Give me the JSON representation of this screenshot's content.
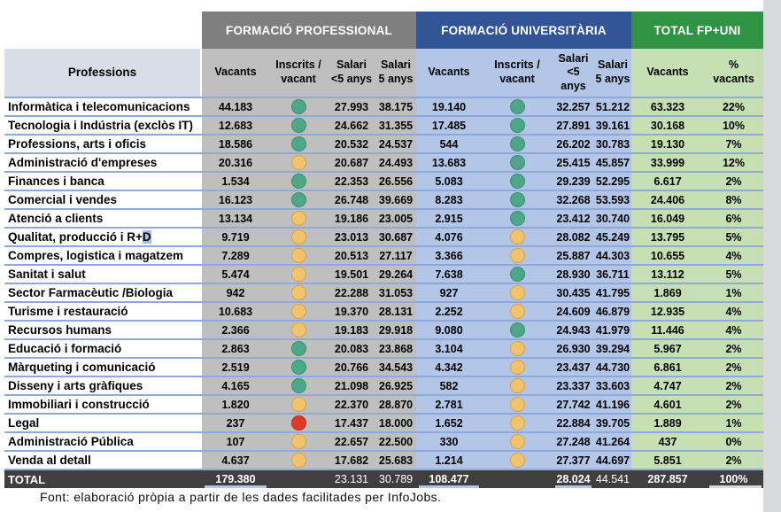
{
  "page": {
    "footer": "Font: elaboració pròpia a partir de les dades facilitades per InfoJobs."
  },
  "colors": {
    "fp_header": "#7F7F7F",
    "uni_header": "#305496",
    "tot_header": "#2E9342",
    "prof_subheader": "#D8DDE7",
    "fp_bg": "#BFBFBF",
    "uni_bg": "#B4C6E7",
    "tot_bg": "#C6E0B4",
    "row_line": "#8EA9DB",
    "total_row_bg": "#3F3F3F",
    "dot_green": "#4DA788",
    "dot_green_border": "#3A8F74",
    "dot_yellow": "#F1C36C",
    "dot_yellow_border": "#D9A348",
    "dot_red": "#DE3A24",
    "dot_red_border": "#B92D18"
  },
  "table": {
    "group_headers": {
      "fp": "FORMACIÓ PROFESSIONAL",
      "uni": "FORMACIÓ UNIVERSITÀRIA",
      "total": "TOTAL FP+UNI"
    },
    "col_headers": {
      "professions": "Professions",
      "fp": [
        "Vacants",
        "Inscrits /\nvacant",
        "Salari\n<5 anys",
        "Salari\n5 anys"
      ],
      "uni": [
        "Vacants",
        "Inscrits /\nvacant",
        "Salari <5\nanys",
        "Salari\n5 anys"
      ],
      "total": [
        "Vacants",
        "%\nvacants"
      ]
    },
    "rows": [
      {
        "name": "Informàtica i telecomunicacions",
        "fp": {
          "vacants": "44.183",
          "dot": "green",
          "salari_lt5": "27.993",
          "salari_5": "38.175"
        },
        "uni": {
          "vacants": "19.140",
          "dot": "green",
          "salari_lt5": "32.257",
          "salari_5": "51.212"
        },
        "total": {
          "vacants": "63.323",
          "pct": "22%"
        }
      },
      {
        "name": "Tecnologia i Indústria (exclòs IT)",
        "fp": {
          "vacants": "12.683",
          "dot": "green",
          "salari_lt5": "24.662",
          "salari_5": "31.355"
        },
        "uni": {
          "vacants": "17.485",
          "dot": "green",
          "salari_lt5": "27.891",
          "salari_5": "39.161"
        },
        "total": {
          "vacants": "30.168",
          "pct": "10%"
        }
      },
      {
        "name": "Professions, arts i oficis",
        "fp": {
          "vacants": "18.586",
          "dot": "green",
          "salari_lt5": "20.532",
          "salari_5": "24.537"
        },
        "uni": {
          "vacants": "544",
          "dot": "green",
          "salari_lt5": "26.202",
          "salari_5": "30.783"
        },
        "total": {
          "vacants": "19.130",
          "pct": "7%"
        }
      },
      {
        "name": "Administració d'empreses",
        "fp": {
          "vacants": "20.316",
          "dot": "yellow",
          "salari_lt5": "20.687",
          "salari_5": "24.493"
        },
        "uni": {
          "vacants": "13.683",
          "dot": "green",
          "salari_lt5": "25.415",
          "salari_5": "45.857"
        },
        "total": {
          "vacants": "33.999",
          "pct": "12%"
        }
      },
      {
        "name": "Finances i banca",
        "fp": {
          "vacants": "1.534",
          "dot": "green",
          "salari_lt5": "22.353",
          "salari_5": "26.556"
        },
        "uni": {
          "vacants": "5.083",
          "dot": "green",
          "salari_lt5": "29.239",
          "salari_5": "52.295"
        },
        "total": {
          "vacants": "6.617",
          "pct": "2%"
        }
      },
      {
        "name": "Comercial i vendes",
        "fp": {
          "vacants": "16.123",
          "dot": "green",
          "salari_lt5": "26.748",
          "salari_5": "39.669"
        },
        "uni": {
          "vacants": "8.283",
          "dot": "green",
          "salari_lt5": "32.268",
          "salari_5": "53.593"
        },
        "total": {
          "vacants": "24.406",
          "pct": "8%"
        }
      },
      {
        "name": "Atenció a clients",
        "fp": {
          "vacants": "13.134",
          "dot": "yellow",
          "salari_lt5": "19.186",
          "salari_5": "23.005"
        },
        "uni": {
          "vacants": "2.915",
          "dot": "green",
          "salari_lt5": "23.412",
          "salari_5": "30.740"
        },
        "total": {
          "vacants": "16.049",
          "pct": "6%"
        }
      },
      {
        "name": "Qualitat, producció i R+D",
        "highlight_last": true,
        "fp": {
          "vacants": "9.719",
          "dot": "yellow",
          "salari_lt5": "23.013",
          "salari_5": "30.687"
        },
        "uni": {
          "vacants": "4.076",
          "dot": "yellow",
          "salari_lt5": "28.082",
          "salari_5": "45.249"
        },
        "total": {
          "vacants": "13.795",
          "pct": "5%"
        }
      },
      {
        "name": "Compres, logistica i magatzem",
        "fp": {
          "vacants": "7.289",
          "dot": "yellow",
          "salari_lt5": "20.513",
          "salari_5": "27.117"
        },
        "uni": {
          "vacants": "3.366",
          "dot": "yellow",
          "salari_lt5": "25.887",
          "salari_5": "44.303"
        },
        "total": {
          "vacants": "10.655",
          "pct": "4%"
        }
      },
      {
        "name": "Sanitat i salut",
        "fp": {
          "vacants": "5.474",
          "dot": "yellow",
          "salari_lt5": "19.501",
          "salari_5": "29.264"
        },
        "uni": {
          "vacants": "7.638",
          "dot": "green",
          "salari_lt5": "28.930",
          "salari_5": "36.711"
        },
        "total": {
          "vacants": "13.112",
          "pct": "5%"
        }
      },
      {
        "name": "Sector Farmacèutic /Biologia",
        "fp": {
          "vacants": "942",
          "dot": "yellow",
          "salari_lt5": "22.288",
          "salari_5": "31.053"
        },
        "uni": {
          "vacants": "927",
          "dot": "yellow",
          "salari_lt5": "30.435",
          "salari_5": "41.795"
        },
        "total": {
          "vacants": "1.869",
          "pct": "1%"
        }
      },
      {
        "name": "Turisme i restauració",
        "fp": {
          "vacants": "10.683",
          "dot": "yellow",
          "salari_lt5": "19.370",
          "salari_5": "28.131"
        },
        "uni": {
          "vacants": "2.252",
          "dot": "yellow",
          "salari_lt5": "24.609",
          "salari_5": "46.879"
        },
        "total": {
          "vacants": "12.935",
          "pct": "4%"
        }
      },
      {
        "name": "Recursos humans",
        "fp": {
          "vacants": "2.366",
          "dot": "yellow",
          "salari_lt5": "19.183",
          "salari_5": "29.918"
        },
        "uni": {
          "vacants": "9.080",
          "dot": "green",
          "salari_lt5": "24.943",
          "salari_5": "41.979"
        },
        "total": {
          "vacants": "11.446",
          "pct": "4%"
        }
      },
      {
        "name": "Educació i formació",
        "fp": {
          "vacants": "2.863",
          "dot": "green",
          "salari_lt5": "20.083",
          "salari_5": "23.868"
        },
        "uni": {
          "vacants": "3.104",
          "dot": "yellow",
          "salari_lt5": "26.930",
          "salari_5": "39.294"
        },
        "total": {
          "vacants": "5.967",
          "pct": "2%"
        }
      },
      {
        "name": "Màrqueting i comunicació",
        "fp": {
          "vacants": "2.519",
          "dot": "green",
          "salari_lt5": "20.766",
          "salari_5": "34.543"
        },
        "uni": {
          "vacants": "4.342",
          "dot": "yellow",
          "salari_lt5": "23.437",
          "salari_5": "44.730"
        },
        "total": {
          "vacants": "6.861",
          "pct": "2%"
        }
      },
      {
        "name": "Disseny i arts gràfiques",
        "fp": {
          "vacants": "4.165",
          "dot": "green",
          "salari_lt5": "21.098",
          "salari_5": "26.925"
        },
        "uni": {
          "vacants": "582",
          "dot": "yellow",
          "salari_lt5": "23.337",
          "salari_5": "33.603"
        },
        "total": {
          "vacants": "4.747",
          "pct": "2%"
        }
      },
      {
        "name": "Immobiliari i construcció",
        "fp": {
          "vacants": "1.820",
          "dot": "yellow",
          "salari_lt5": "22.370",
          "salari_5": "28.870"
        },
        "uni": {
          "vacants": "2.781",
          "dot": "yellow",
          "salari_lt5": "27.742",
          "salari_5": "41.196"
        },
        "total": {
          "vacants": "4.601",
          "pct": "2%"
        }
      },
      {
        "name": "Legal",
        "fp": {
          "vacants": "237",
          "dot": "red",
          "salari_lt5": "17.437",
          "salari_5": "18.000"
        },
        "uni": {
          "vacants": "1.652",
          "dot": "yellow",
          "salari_lt5": "22.884",
          "salari_5": "39.705"
        },
        "total": {
          "vacants": "1.889",
          "pct": "1%"
        }
      },
      {
        "name": "Administració Pública",
        "fp": {
          "vacants": "107",
          "dot": "yellow",
          "salari_lt5": "22.657",
          "salari_5": "22.500"
        },
        "uni": {
          "vacants": "330",
          "dot": "yellow",
          "salari_lt5": "27.248",
          "salari_5": "41.264"
        },
        "total": {
          "vacants": "437",
          "pct": "0%"
        }
      },
      {
        "name": "Venda al detall",
        "fp": {
          "vacants": "4.637",
          "dot": "yellow",
          "salari_lt5": "17.682",
          "salari_5": "25.683"
        },
        "uni": {
          "vacants": "1.214",
          "dot": "yellow",
          "salari_lt5": "27.377",
          "salari_5": "44.697"
        },
        "total": {
          "vacants": "5.851",
          "pct": "2%"
        }
      }
    ],
    "total_row": {
      "label": "TOTAL",
      "fp_vacants": "179.380",
      "fp_salari_lt5": "23.131",
      "fp_salari_5": "30.789",
      "uni_vacants": "108.477",
      "uni_salari_lt5": "28.024",
      "uni_salari_5": "44.541",
      "total_vacants": "287.857",
      "pct": "100%"
    }
  }
}
